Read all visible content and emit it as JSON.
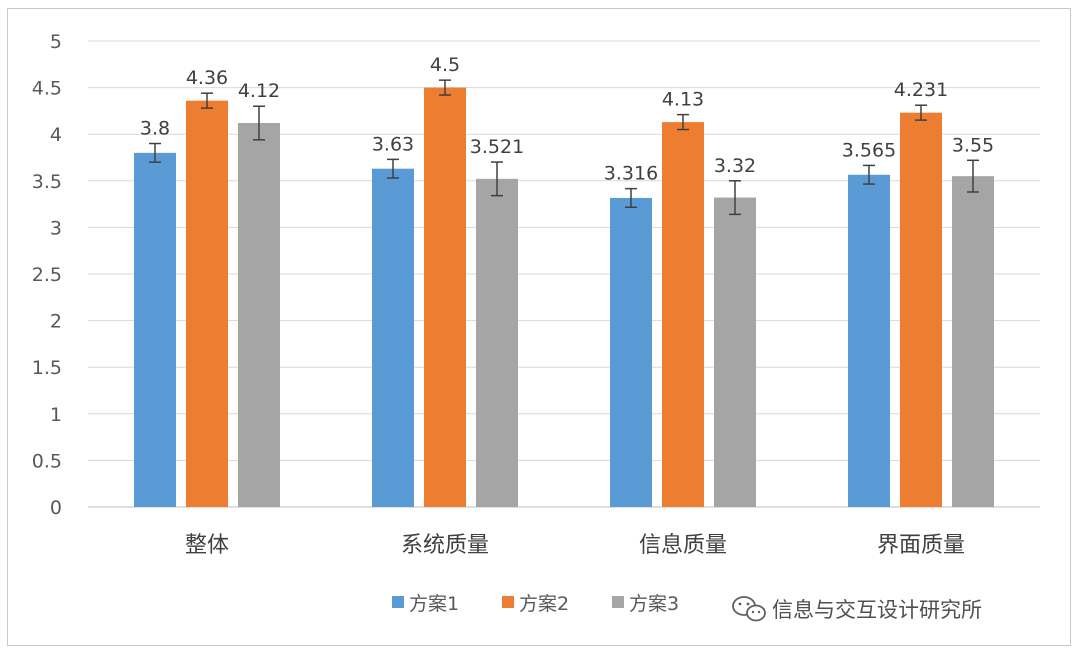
{
  "chart_data": {
    "type": "bar",
    "title": "",
    "xlabel": "",
    "ylabel": "",
    "categories": [
      "整体",
      "系统质量",
      "信息质量",
      "界面质量"
    ],
    "series": [
      {
        "name": "方案1",
        "color": "#5b9bd5",
        "values": [
          3.8,
          3.63,
          3.316,
          3.565
        ],
        "labels": [
          "3.8",
          "3.63",
          "3.316",
          "3.565"
        ],
        "errors": [
          0.1,
          0.1,
          0.1,
          0.1
        ]
      },
      {
        "name": "方案2",
        "color": "#ed7d31",
        "values": [
          4.36,
          4.5,
          4.13,
          4.231
        ],
        "labels": [
          "4.36",
          "4.5",
          "4.13",
          "4.231"
        ],
        "errors": [
          0.08,
          0.08,
          0.08,
          0.08
        ]
      },
      {
        "name": "方案3",
        "color": "#a5a5a5",
        "values": [
          4.12,
          3.521,
          3.32,
          3.55
        ],
        "labels": [
          "4.12",
          "3.521",
          "3.32",
          "3.55"
        ],
        "errors": [
          0.18,
          0.18,
          0.18,
          0.17
        ]
      }
    ],
    "ylim": [
      0,
      5
    ],
    "yticks": [
      "0",
      "0.5",
      "1",
      "1.5",
      "2",
      "2.5",
      "3",
      "3.5",
      "4",
      "4.5",
      "5"
    ],
    "grid": true,
    "legend": "bottom"
  },
  "watermark": {
    "icon": "wechat-icon",
    "text": "信息与交互设计研究所"
  }
}
